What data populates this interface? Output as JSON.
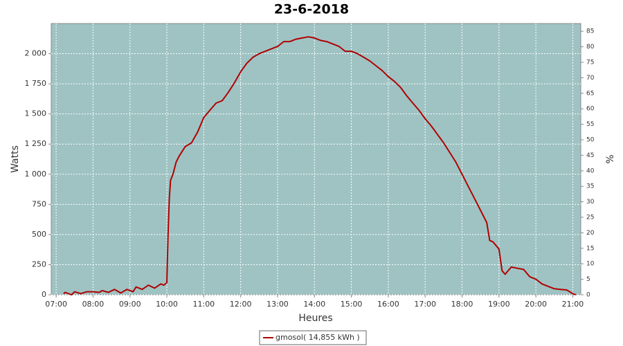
{
  "chart_data": {
    "type": "line",
    "title": "23-6-2018",
    "x_label": "Heures",
    "y_label": "Watts",
    "y2_label": "%",
    "grid": true,
    "plot_background": "#9fc3c3",
    "xlim": [
      412,
      1273
    ],
    "ylim": [
      0,
      2250
    ],
    "y2lim": [
      0,
      87.5
    ],
    "xticks": [
      {
        "value": 420,
        "label": "07:00"
      },
      {
        "value": 480,
        "label": "08:00"
      },
      {
        "value": 540,
        "label": "09:00"
      },
      {
        "value": 600,
        "label": "10:00"
      },
      {
        "value": 660,
        "label": "11:00"
      },
      {
        "value": 720,
        "label": "12:00"
      },
      {
        "value": 780,
        "label": "13:00"
      },
      {
        "value": 840,
        "label": "14:00"
      },
      {
        "value": 900,
        "label": "15:00"
      },
      {
        "value": 960,
        "label": "16:00"
      },
      {
        "value": 1020,
        "label": "17:00"
      },
      {
        "value": 1080,
        "label": "18:00"
      },
      {
        "value": 1140,
        "label": "19:00"
      },
      {
        "value": 1200,
        "label": "20:00"
      },
      {
        "value": 1260,
        "label": "21:00"
      }
    ],
    "yticks": [
      0,
      250,
      500,
      750,
      {
        "value": 1000,
        "label": "1 000"
      },
      {
        "value": 1250,
        "label": "1 250"
      },
      {
        "value": 1500,
        "label": "1 500"
      },
      {
        "value": 1750,
        "label": "1 750"
      },
      {
        "value": 2000,
        "label": "2 000"
      }
    ],
    "y2ticks": [
      0,
      5,
      10,
      15,
      20,
      25,
      30,
      35,
      40,
      45,
      50,
      55,
      60,
      65,
      70,
      75,
      80,
      85
    ],
    "x": [
      432,
      435,
      445,
      450,
      460,
      470,
      480,
      490,
      495,
      505,
      515,
      525,
      535,
      545,
      550,
      560,
      570,
      580,
      590,
      595,
      600,
      602,
      604,
      606,
      610,
      615,
      620,
      630,
      640,
      650,
      660,
      670,
      680,
      690,
      700,
      710,
      720,
      730,
      740,
      750,
      760,
      770,
      780,
      790,
      800,
      810,
      820,
      830,
      840,
      850,
      860,
      870,
      880,
      890,
      900,
      910,
      920,
      930,
      940,
      950,
      960,
      970,
      980,
      990,
      1000,
      1010,
      1020,
      1030,
      1040,
      1050,
      1060,
      1070,
      1080,
      1090,
      1100,
      1110,
      1120,
      1125,
      1130,
      1140,
      1145,
      1150,
      1160,
      1170,
      1180,
      1190,
      1200,
      1210,
      1220,
      1230,
      1240,
      1250,
      1260,
      1265
    ],
    "series": [
      {
        "name": "gmosol( 14,855 kWh )",
        "color": "#b00000",
        "values": [
          10,
          20,
          0,
          25,
          10,
          25,
          25,
          20,
          35,
          20,
          45,
          15,
          45,
          25,
          65,
          45,
          80,
          55,
          90,
          80,
          100,
          500,
          800,
          950,
          1000,
          1100,
          1150,
          1230,
          1260,
          1350,
          1470,
          1530,
          1590,
          1610,
          1680,
          1760,
          1850,
          1920,
          1970,
          2000,
          2020,
          2040,
          2060,
          2100,
          2100,
          2120,
          2130,
          2140,
          2130,
          2110,
          2100,
          2080,
          2060,
          2020,
          2020,
          2000,
          1970,
          1940,
          1900,
          1860,
          1810,
          1770,
          1720,
          1650,
          1590,
          1530,
          1460,
          1400,
          1330,
          1260,
          1180,
          1100,
          1000,
          900,
          800,
          700,
          600,
          450,
          440,
          380,
          200,
          170,
          230,
          220,
          210,
          150,
          130,
          90,
          70,
          50,
          45,
          40,
          10,
          0
        ]
      }
    ]
  }
}
